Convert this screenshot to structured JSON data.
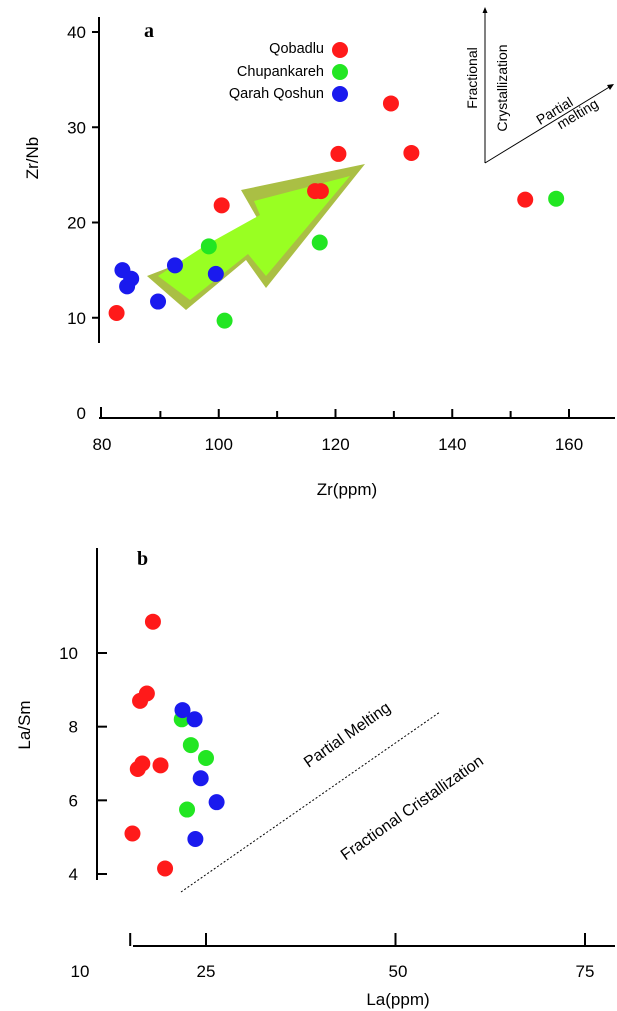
{
  "chart_data": [
    {
      "type": "scatter",
      "panel_label": "a",
      "xlabel": "Zr(ppm)",
      "ylabel": "Zr/Nb",
      "xlim": [
        80,
        168
      ],
      "ylim": [
        0,
        41
      ],
      "x_ticks": [
        "80",
        "100",
        "120",
        "140",
        "160"
      ],
      "y_ticks": [
        "0",
        "10",
        "20",
        "30",
        "40"
      ],
      "legend_position": "top-center",
      "series": [
        {
          "name": "Qobadlu",
          "color": "#ff1a1a",
          "points": [
            [
              82.5,
              10.5
            ],
            [
              100.5,
              21.8
            ],
            [
              116.5,
              23.3
            ],
            [
              117.5,
              23.3
            ],
            [
              120.5,
              27.2
            ],
            [
              129.5,
              32.5
            ],
            [
              133,
              27.3
            ],
            [
              152.5,
              22.4
            ]
          ]
        },
        {
          "name": "Chupankareh",
          "color": "#22e622",
          "points": [
            [
              98.3,
              17.5
            ],
            [
              101,
              9.7
            ],
            [
              117.3,
              17.9
            ],
            [
              157.8,
              22.5
            ]
          ]
        },
        {
          "name": "Qarah Qoshun",
          "color": "#1a1aee",
          "points": [
            [
              83.5,
              15
            ],
            [
              84.3,
              13.3
            ],
            [
              85,
              14.1
            ],
            [
              89.6,
              11.7
            ],
            [
              92.5,
              15.5
            ],
            [
              99.5,
              14.6
            ]
          ]
        }
      ],
      "annotations": [
        "Fractional",
        "Crystallization",
        "Partial",
        "melting"
      ]
    },
    {
      "type": "scatter",
      "panel_label": "b",
      "xlabel": "La(ppm)",
      "ylabel": "La/Sm",
      "xlim": [
        10,
        80
      ],
      "ylim": [
        3.5,
        13
      ],
      "x_ticks": [
        "10",
        "25",
        "50",
        "75"
      ],
      "y_ticks": [
        "4",
        "6",
        "8",
        "10"
      ],
      "series": [
        {
          "color": "#ff1a1a",
          "points": [
            [
              15.3,
              5.1
            ],
            [
              16,
              6.85
            ],
            [
              16.3,
              8.7
            ],
            [
              16.6,
              7.0
            ],
            [
              17.2,
              8.9
            ],
            [
              18,
              10.85
            ],
            [
              19,
              6.95
            ],
            [
              19.6,
              4.15
            ]
          ]
        },
        {
          "color": "#22e622",
          "points": [
            [
              21.8,
              8.2
            ],
            [
              22.5,
              5.75
            ],
            [
              23,
              7.5
            ],
            [
              25,
              7.15
            ]
          ]
        },
        {
          "color": "#1a1aee",
          "points": [
            [
              21.9,
              8.45
            ],
            [
              23.5,
              8.2
            ],
            [
              23.6,
              4.95
            ],
            [
              24.3,
              6.6
            ],
            [
              26.4,
              5.95
            ]
          ]
        }
      ],
      "annotations": [
        "Partial Melting",
        "Fractional Cristallization"
      ]
    }
  ]
}
